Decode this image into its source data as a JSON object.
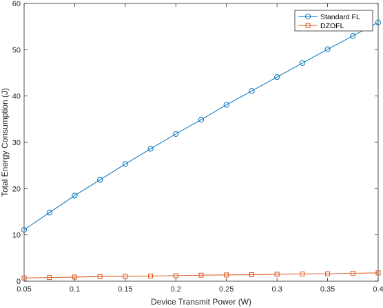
{
  "chart_data": {
    "type": "line",
    "xlabel": "Device Transmit Power (W)",
    "ylabel": "Total Energy Consumption (J)",
    "xlim": [
      0.05,
      0.4
    ],
    "ylim": [
      0,
      60
    ],
    "xticks": [
      "0.05",
      "0.1",
      "0.15",
      "0.2",
      "0.25",
      "0.3",
      "0.35",
      "0.4"
    ],
    "yticks": [
      "0",
      "10",
      "20",
      "30",
      "40",
      "50",
      "60"
    ],
    "x": [
      0.05,
      0.075,
      0.1,
      0.125,
      0.15,
      0.175,
      0.2,
      0.225,
      0.25,
      0.275,
      0.3,
      0.325,
      0.35,
      0.375,
      0.4
    ],
    "series": [
      {
        "name": "Standard FL",
        "color": "#0072BD",
        "marker": "circle",
        "values": [
          11.1,
          14.8,
          18.5,
          21.9,
          25.3,
          28.6,
          31.8,
          34.9,
          38.1,
          41.1,
          44.1,
          47.1,
          50.1,
          53.0,
          55.9
        ]
      },
      {
        "name": "DZOFL",
        "color": "#D95319",
        "marker": "square",
        "values": [
          0.7,
          0.8,
          0.9,
          1.0,
          1.05,
          1.1,
          1.2,
          1.3,
          1.35,
          1.4,
          1.5,
          1.55,
          1.6,
          1.7,
          1.8
        ]
      }
    ],
    "grid": false,
    "legend": "top-right",
    "box": true
  }
}
